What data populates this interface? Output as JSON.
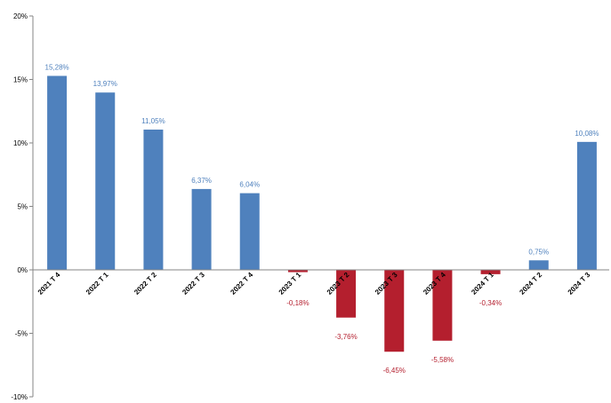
{
  "chart_data": {
    "type": "bar",
    "categories": [
      "2021 T 4",
      "2022 T 1",
      "2022 T 2",
      "2022 T 3",
      "2022 T 4",
      "2023 T 1",
      "2023 T 2",
      "2023 T 3",
      "2023 T 4",
      "2024 T 1",
      "2024 T 2",
      "2024 T 3"
    ],
    "values": [
      15.28,
      13.97,
      11.05,
      6.37,
      6.04,
      -0.18,
      -3.76,
      -6.45,
      -5.58,
      -0.34,
      0.75,
      10.08
    ],
    "data_labels": [
      "15,28%",
      "13,97%",
      "11,05%",
      "6,37%",
      "6,04%",
      "-0,18%",
      "-3,76%",
      "-6,45%",
      "-5,58%",
      "-0,34%",
      "0,75%",
      "10,08%"
    ],
    "y_ticks": [
      -10,
      -5,
      0,
      5,
      10,
      15,
      20
    ],
    "y_tick_labels": [
      "-10%",
      "-5%",
      "0%",
      "5%",
      "10%",
      "15%",
      "20%"
    ],
    "ylim": [
      -10,
      20
    ],
    "grid": false,
    "legend": "none",
    "colors": {
      "positive": "#4f81bd",
      "negative": "#b41f2e"
    }
  }
}
